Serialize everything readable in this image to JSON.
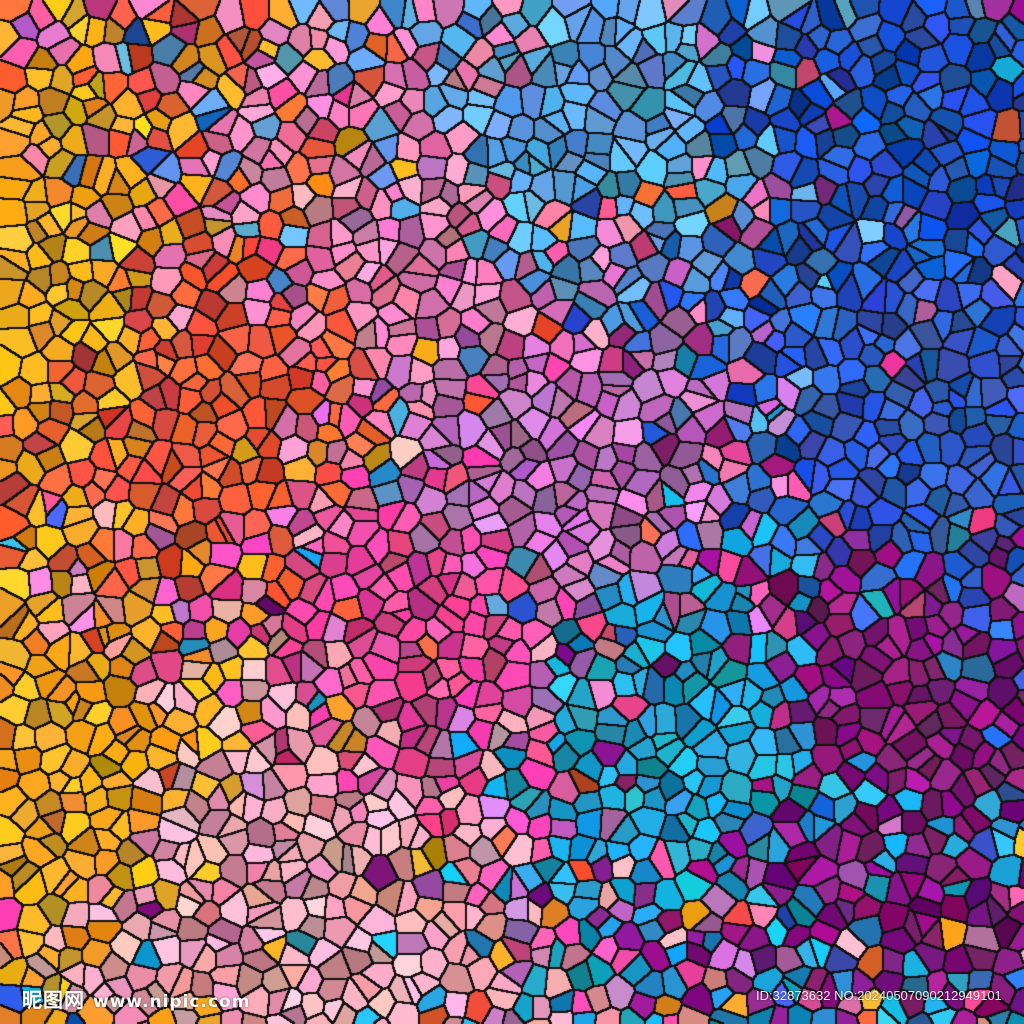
{
  "artwork": {
    "outline_color": "#111111",
    "palette": [
      {
        "region": "left",
        "color": "#f5a623"
      },
      {
        "region": "lower-left",
        "color": "#f7a020"
      },
      {
        "region": "left-center",
        "color": "#f05a3a"
      },
      {
        "region": "upper-center",
        "color": "#f080b0"
      },
      {
        "region": "center",
        "color": "#f04a9a"
      },
      {
        "region": "lower-center",
        "color": "#f5a0b0"
      },
      {
        "region": "top-center-right",
        "color": "#5aa0e0"
      },
      {
        "region": "top-right",
        "color": "#1a50c0"
      },
      {
        "region": "right",
        "color": "#3060d0"
      },
      {
        "region": "lower-center-right",
        "color": "#20a0d0"
      },
      {
        "region": "right-lower",
        "color": "#8a1a80"
      },
      {
        "region": "center-violet",
        "color": "#c070c0"
      }
    ]
  },
  "watermark": {
    "brand": "昵图网",
    "url": "www.nipic.com",
    "id_text": "ID:32873632 NO:20240507090212949101"
  }
}
